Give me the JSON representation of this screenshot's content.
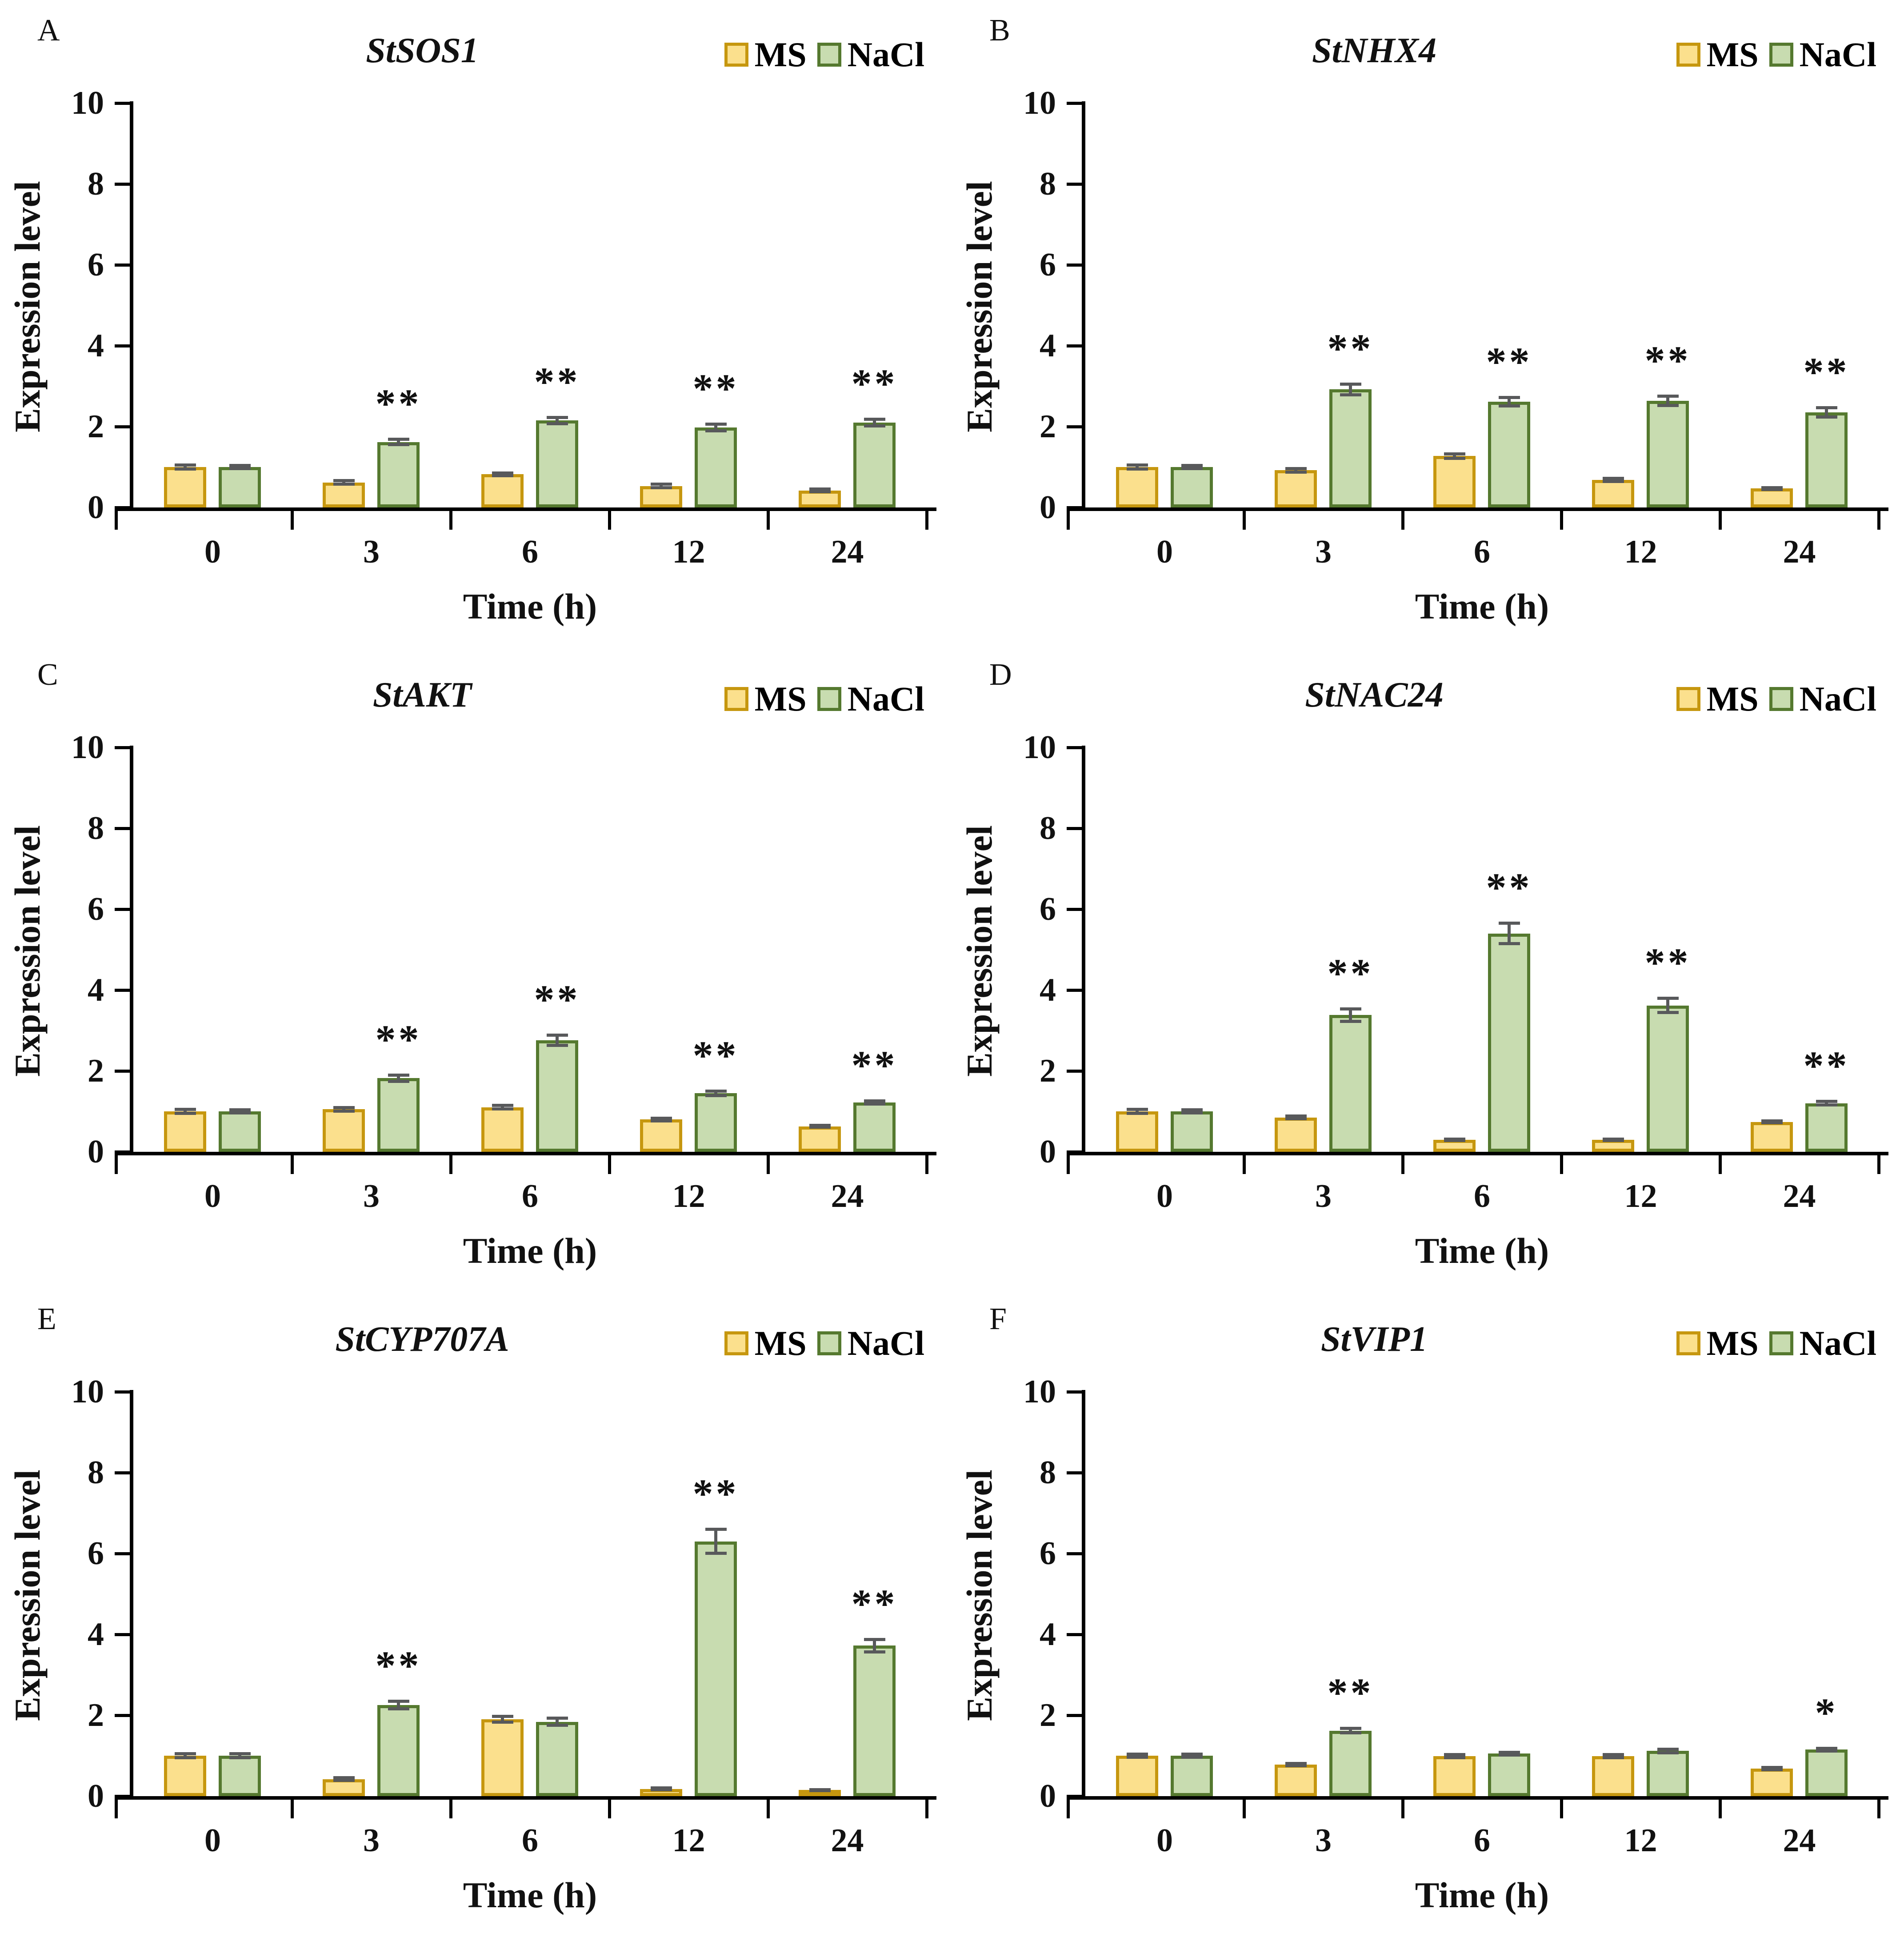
{
  "figure": {
    "background": "#ffffff",
    "legend": {
      "ms_label": "MS",
      "nacl_label": "NaCl"
    },
    "colors": {
      "ms_fill": "#FBE08D",
      "ms_border": "#C6970F",
      "nacl_fill": "#C8DCB0",
      "nacl_border": "#55792F",
      "error_bar": "#58595B",
      "axis": "#000000",
      "text": "#111111"
    }
  },
  "chart_data": [
    {
      "type": "bar",
      "panel": "A",
      "title": "StSOS1",
      "xlabel": "Time (h)",
      "ylabel": "Expression level",
      "ylim": [
        0,
        10
      ],
      "yticks": [
        0,
        2,
        4,
        6,
        8,
        10
      ],
      "grid": false,
      "legend_position": "top-right",
      "categories": [
        "0",
        "3",
        "6",
        "12",
        "24"
      ],
      "series": [
        {
          "name": "MS",
          "values": [
            1.0,
            0.62,
            0.82,
            0.53,
            0.42
          ],
          "errors": [
            0.05,
            0.05,
            0.04,
            0.05,
            0.04
          ]
        },
        {
          "name": "NaCl",
          "values": [
            1.0,
            1.62,
            2.15,
            1.98,
            2.1
          ],
          "errors": [
            0.04,
            0.07,
            0.08,
            0.09,
            0.09
          ]
        }
      ],
      "significance": [
        "",
        "**",
        "**",
        "**",
        "**"
      ]
    },
    {
      "type": "bar",
      "panel": "B",
      "title": "StNHX4",
      "xlabel": "Time (h)",
      "ylabel": "Expression level",
      "ylim": [
        0,
        10
      ],
      "yticks": [
        0,
        2,
        4,
        6,
        8,
        10
      ],
      "grid": false,
      "legend_position": "top-right",
      "categories": [
        "0",
        "3",
        "6",
        "12",
        "24"
      ],
      "series": [
        {
          "name": "MS",
          "values": [
            1.0,
            0.92,
            1.27,
            0.68,
            0.47
          ],
          "errors": [
            0.05,
            0.05,
            0.06,
            0.04,
            0.03
          ]
        },
        {
          "name": "NaCl",
          "values": [
            1.0,
            2.92,
            2.62,
            2.64,
            2.35
          ],
          "errors": [
            0.04,
            0.14,
            0.11,
            0.12,
            0.12
          ]
        }
      ],
      "significance": [
        "",
        "**",
        "**",
        "**",
        "**"
      ]
    },
    {
      "type": "bar",
      "panel": "C",
      "title": "StAKT",
      "xlabel": "Time (h)",
      "ylabel": "Expression level",
      "ylim": [
        0,
        10
      ],
      "yticks": [
        0,
        2,
        4,
        6,
        8,
        10
      ],
      "grid": false,
      "legend_position": "top-right",
      "categories": [
        "0",
        "3",
        "6",
        "12",
        "24"
      ],
      "series": [
        {
          "name": "MS",
          "values": [
            1.0,
            1.05,
            1.1,
            0.8,
            0.63
          ],
          "errors": [
            0.05,
            0.05,
            0.05,
            0.04,
            0.03
          ]
        },
        {
          "name": "NaCl",
          "values": [
            1.0,
            1.82,
            2.76,
            1.45,
            1.22
          ],
          "errors": [
            0.04,
            0.08,
            0.13,
            0.06,
            0.04
          ]
        }
      ],
      "significance": [
        "",
        "**",
        "**",
        "**",
        "**"
      ]
    },
    {
      "type": "bar",
      "panel": "D",
      "title": "StNAC24",
      "xlabel": "Time (h)",
      "ylabel": "Expression level",
      "ylim": [
        0,
        10
      ],
      "yticks": [
        0,
        2,
        4,
        6,
        8,
        10
      ],
      "grid": false,
      "legend_position": "top-right",
      "categories": [
        "0",
        "3",
        "6",
        "12",
        "24"
      ],
      "series": [
        {
          "name": "MS",
          "values": [
            1.0,
            0.85,
            0.3,
            0.3,
            0.74
          ],
          "errors": [
            0.05,
            0.04,
            0.02,
            0.02,
            0.03
          ]
        },
        {
          "name": "NaCl",
          "values": [
            1.0,
            3.38,
            5.4,
            3.62,
            1.2
          ],
          "errors": [
            0.04,
            0.16,
            0.26,
            0.18,
            0.05
          ]
        }
      ],
      "significance": [
        "",
        "**",
        "**",
        "**",
        "**"
      ]
    },
    {
      "type": "bar",
      "panel": "E",
      "title": "StCYP707A",
      "xlabel": "Time (h)",
      "ylabel": "Expression level",
      "ylim": [
        0,
        10
      ],
      "yticks": [
        0,
        2,
        4,
        6,
        8,
        10
      ],
      "grid": false,
      "legend_position": "top-right",
      "categories": [
        "0",
        "3",
        "6",
        "12",
        "24"
      ],
      "series": [
        {
          "name": "MS",
          "values": [
            1.0,
            0.42,
            1.9,
            0.18,
            0.15
          ],
          "errors": [
            0.06,
            0.04,
            0.08,
            0.03,
            0.02
          ]
        },
        {
          "name": "NaCl",
          "values": [
            1.0,
            2.25,
            1.84,
            6.3,
            3.72
          ],
          "errors": [
            0.05,
            0.1,
            0.09,
            0.3,
            0.16
          ]
        }
      ],
      "significance": [
        "",
        "**",
        "",
        "**",
        "**"
      ]
    },
    {
      "type": "bar",
      "panel": "F",
      "title": "StVIP1",
      "xlabel": "Time (h)",
      "ylabel": "Expression level",
      "ylim": [
        0,
        10
      ],
      "yticks": [
        0,
        2,
        4,
        6,
        8,
        10
      ],
      "grid": false,
      "legend_position": "top-right",
      "categories": [
        "0",
        "3",
        "6",
        "12",
        "24"
      ],
      "series": [
        {
          "name": "MS",
          "values": [
            1.0,
            0.78,
            0.99,
            0.99,
            0.68
          ],
          "errors": [
            0.04,
            0.03,
            0.04,
            0.04,
            0.03
          ]
        },
        {
          "name": "NaCl",
          "values": [
            1.0,
            1.62,
            1.05,
            1.12,
            1.15
          ],
          "errors": [
            0.04,
            0.06,
            0.04,
            0.05,
            0.04
          ]
        }
      ],
      "significance": [
        "",
        "**",
        "",
        "",
        "*"
      ]
    }
  ]
}
